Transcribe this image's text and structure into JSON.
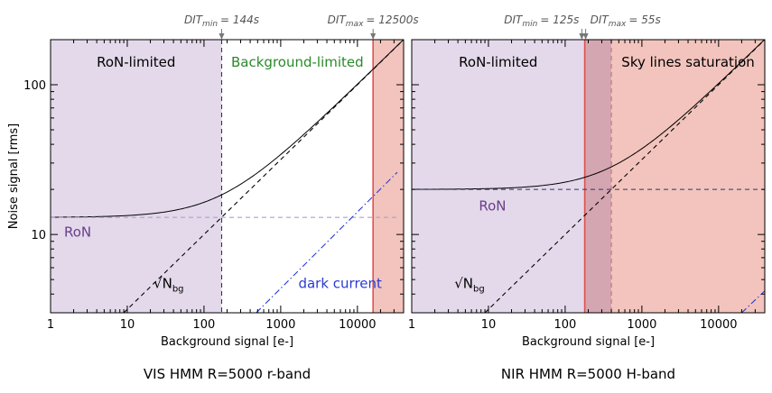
{
  "chart_data": [
    {
      "type": "line",
      "caption": "VIS HMM R=5000 r-band",
      "xlabel": "Background signal [e-]",
      "ylabel": "Noise signal [rms]",
      "xscale": "log",
      "yscale": "log",
      "xlim": [
        1,
        40000
      ],
      "ylim": [
        3,
        200
      ],
      "x_ticks": [
        {
          "value": 1,
          "label": "1"
        },
        {
          "value": 10,
          "label": "10"
        },
        {
          "value": 100,
          "label": "100"
        },
        {
          "value": 1000,
          "label": "1000"
        },
        {
          "value": 10000,
          "label": "10000"
        }
      ],
      "y_ticks": [
        {
          "value": 10,
          "label": "10"
        },
        {
          "value": 100,
          "label": "100"
        }
      ],
      "regions": [
        {
          "label": "RoN-limited",
          "x_from": 1,
          "x_to": 170,
          "color": "#e3d9ea",
          "label_color": "#000000"
        },
        {
          "label": "Background-limited",
          "x_from": 170,
          "x_to": 16000,
          "color": "#ffffff",
          "label_color": "#2a8a2a"
        },
        {
          "label": "",
          "x_from": 16000,
          "x_to": 40000,
          "color": "#f2c4bd",
          "label_color": "#000000"
        }
      ],
      "dit_markers": [
        {
          "base": "DIT",
          "sub": "min",
          "value": "= 144s",
          "x": 170
        },
        {
          "base": "DIT",
          "sub": "max",
          "value": "= 12500s",
          "x": 16000
        }
      ],
      "vlines": [
        {
          "x": 170,
          "style": "dashed",
          "color": "#333366"
        },
        {
          "x": 16000,
          "style": "solid",
          "color": "#e05050"
        }
      ],
      "series": [
        {
          "role": "total",
          "color": "#000000",
          "style": "solid",
          "ron": 13,
          "dark_ron": 0
        },
        {
          "role": "ron",
          "color": "#a8a0d8",
          "style": "dashed",
          "level": 13
        },
        {
          "role": "sqrt_bg",
          "color": "#000000",
          "style": "dashed"
        },
        {
          "role": "dark",
          "color": "#2a3ad0",
          "style": "dashdot",
          "x_from": 480,
          "x_to": 33000,
          "y_from": 3,
          "y_to": 26
        }
      ],
      "annotations": [
        {
          "text": "RoN",
          "x": 1.5,
          "y": 9.7,
          "color": "#6a3e8a"
        },
        {
          "text": "√N",
          "sub": "bg",
          "x": 22,
          "y": 4.4,
          "color": "#000000"
        },
        {
          "text": "dark current",
          "x": 1700,
          "y": 4.4,
          "color": "#2a3ad0"
        }
      ]
    },
    {
      "type": "line",
      "caption": "NIR HMM R=5000 H-band",
      "xlabel": "Background signal [e-]",
      "xscale": "log",
      "yscale": "log",
      "xlim": [
        1,
        40000
      ],
      "ylim": [
        3,
        200
      ],
      "x_ticks": [
        {
          "value": 1,
          "label": "1"
        },
        {
          "value": 10,
          "label": "10"
        },
        {
          "value": 100,
          "label": "100"
        },
        {
          "value": 1000,
          "label": "1000"
        },
        {
          "value": 10000,
          "label": "10000"
        }
      ],
      "regions": [
        {
          "label": "RoN-limited",
          "x_from": 1,
          "x_to": 180,
          "color": "#e3d9ea",
          "label_color": "#000000"
        },
        {
          "label": "",
          "x_from": 180,
          "x_to": 400,
          "color": "#d4a6b1",
          "label_color": "#000000"
        },
        {
          "label": "Sky lines saturation",
          "x_from": 400,
          "x_to": 40000,
          "color": "#f2c4bd",
          "label_color": "#000000"
        }
      ],
      "dit_markers": [
        {
          "base": "DIT",
          "sub": "min",
          "value": "= 125s",
          "x": 165
        },
        {
          "base": "DIT",
          "sub": "max",
          "value": "= 55s",
          "x": 185
        }
      ],
      "vlines": [
        {
          "x": 180,
          "style": "solid",
          "color": "#e05050"
        },
        {
          "x": 400,
          "style": "dashed",
          "color": "#c07080"
        }
      ],
      "series": [
        {
          "role": "total",
          "color": "#000000",
          "style": "solid",
          "ron": 20,
          "dark_ron": 0
        },
        {
          "role": "ron",
          "color": "#333366",
          "style": "dashed",
          "level": 20
        },
        {
          "role": "sqrt_bg",
          "color": "#000000",
          "style": "dashed"
        },
        {
          "role": "dark",
          "color": "#2a3ad0",
          "style": "dashdot",
          "x_from": 20000,
          "x_to": 40000,
          "y_from": 3,
          "y_to": 4.2
        }
      ],
      "annotations": [
        {
          "text": "RoN",
          "x": 7.5,
          "y": 14.5,
          "color": "#6a3e8a"
        },
        {
          "text": "√N",
          "sub": "bg",
          "x": 3.6,
          "y": 4.4,
          "color": "#000000"
        }
      ]
    }
  ]
}
